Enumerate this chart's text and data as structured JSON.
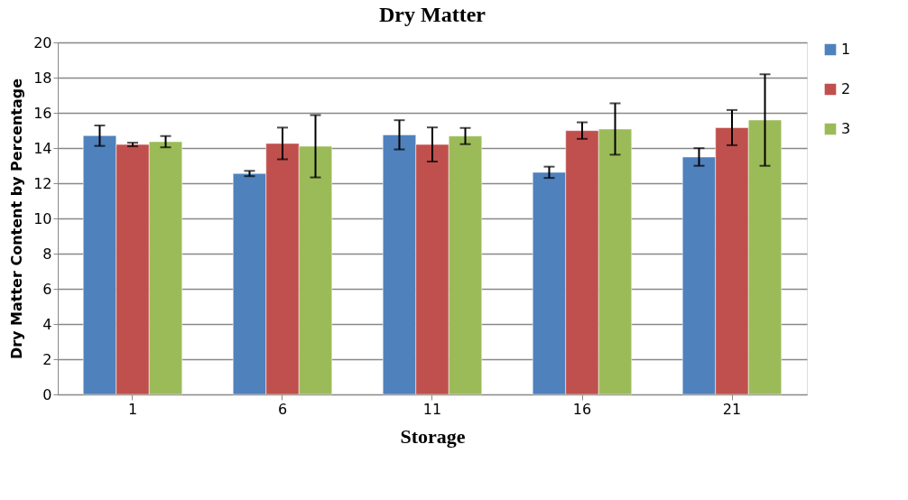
{
  "chart_data": {
    "type": "bar",
    "title": "Dry Matter",
    "xlabel": "Storage",
    "ylabel": "Dry Matter Content by Percentage",
    "categories": [
      "1",
      "6",
      "11",
      "16",
      "21"
    ],
    "series": [
      {
        "name": "1",
        "color": "#4f81bd",
        "values": [
          14.7,
          12.55,
          14.75,
          12.62,
          13.49
        ],
        "errors": [
          0.58,
          0.15,
          0.83,
          0.32,
          0.5
        ]
      },
      {
        "name": "2",
        "color": "#c0504d",
        "values": [
          14.2,
          14.26,
          14.2,
          14.99,
          15.16
        ],
        "errors": [
          0.1,
          0.9,
          0.97,
          0.47,
          1.0
        ]
      },
      {
        "name": "3",
        "color": "#9bbb59",
        "values": [
          14.36,
          14.1,
          14.68,
          15.08,
          15.59
        ],
        "errors": [
          0.32,
          1.77,
          0.46,
          1.46,
          2.6
        ]
      }
    ],
    "ylim": [
      0,
      20
    ],
    "yticks": [
      0,
      2,
      4,
      6,
      8,
      10,
      12,
      14,
      16,
      18,
      20
    ],
    "grid": "y",
    "legend": "right"
  }
}
